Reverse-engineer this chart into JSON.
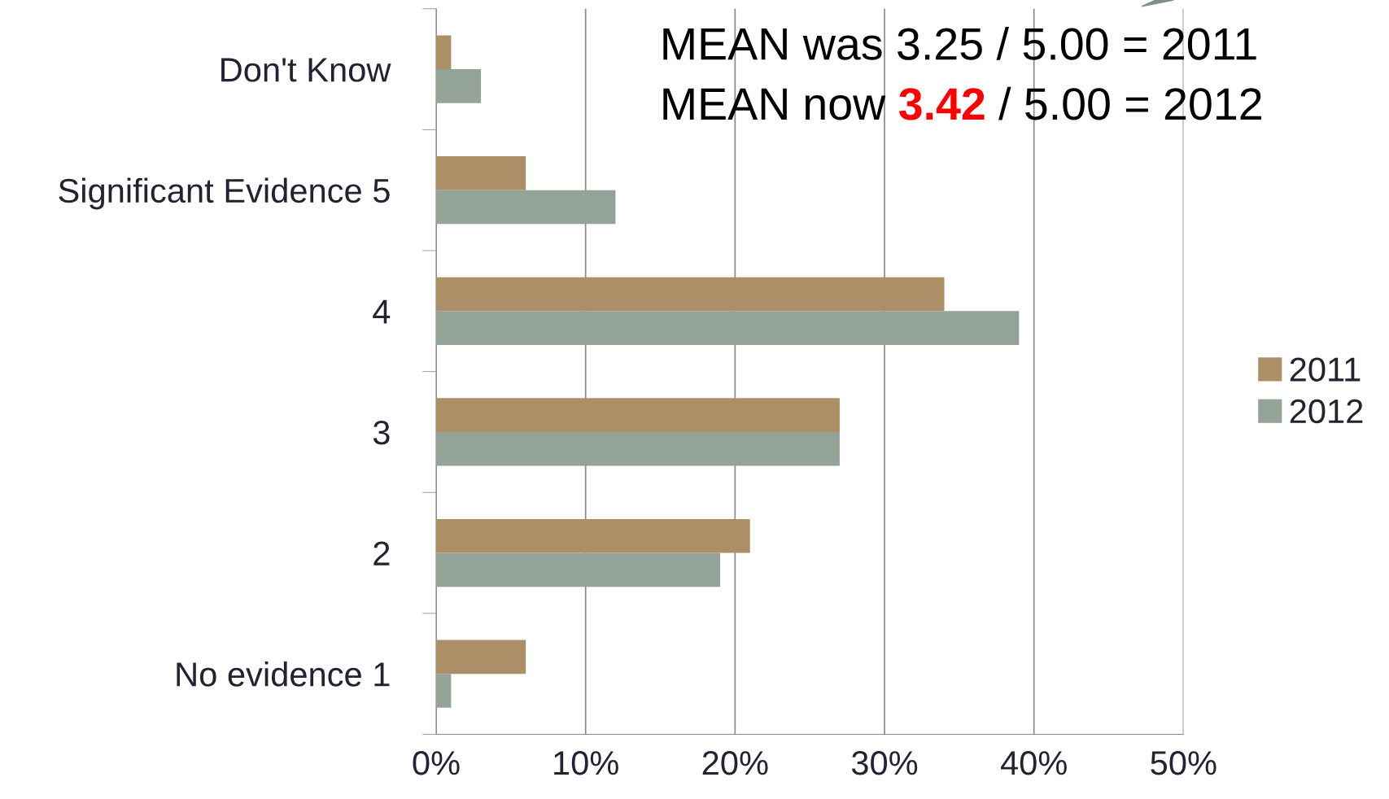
{
  "chart_data": {
    "type": "bar",
    "orientation": "horizontal",
    "categories": [
      "Don't Know",
      "Significant Evidence 5",
      "4",
      "3",
      "2",
      "No evidence 1"
    ],
    "series": [
      {
        "name": "2011",
        "color": "#ad8f67",
        "values": [
          1,
          6,
          34,
          27,
          21,
          6
        ]
      },
      {
        "name": "2012",
        "color": "#94a398",
        "values": [
          3,
          12,
          39,
          27,
          19,
          1
        ]
      }
    ],
    "xlim": [
      0,
      50
    ],
    "xticks": [
      {
        "value": 0,
        "label": "0%"
      },
      {
        "value": 10,
        "label": "10%"
      },
      {
        "value": 20,
        "label": "20%"
      },
      {
        "value": 30,
        "label": "30%"
      },
      {
        "value": 40,
        "label": "40%"
      },
      {
        "value": 50,
        "label": "50%"
      }
    ],
    "grid": "x",
    "legend": "right",
    "annotations": [
      "MEAN was 3.25 / 5.00 = 2011",
      "MEAN now 3.42 / 5.00 = 2012"
    ]
  }
}
